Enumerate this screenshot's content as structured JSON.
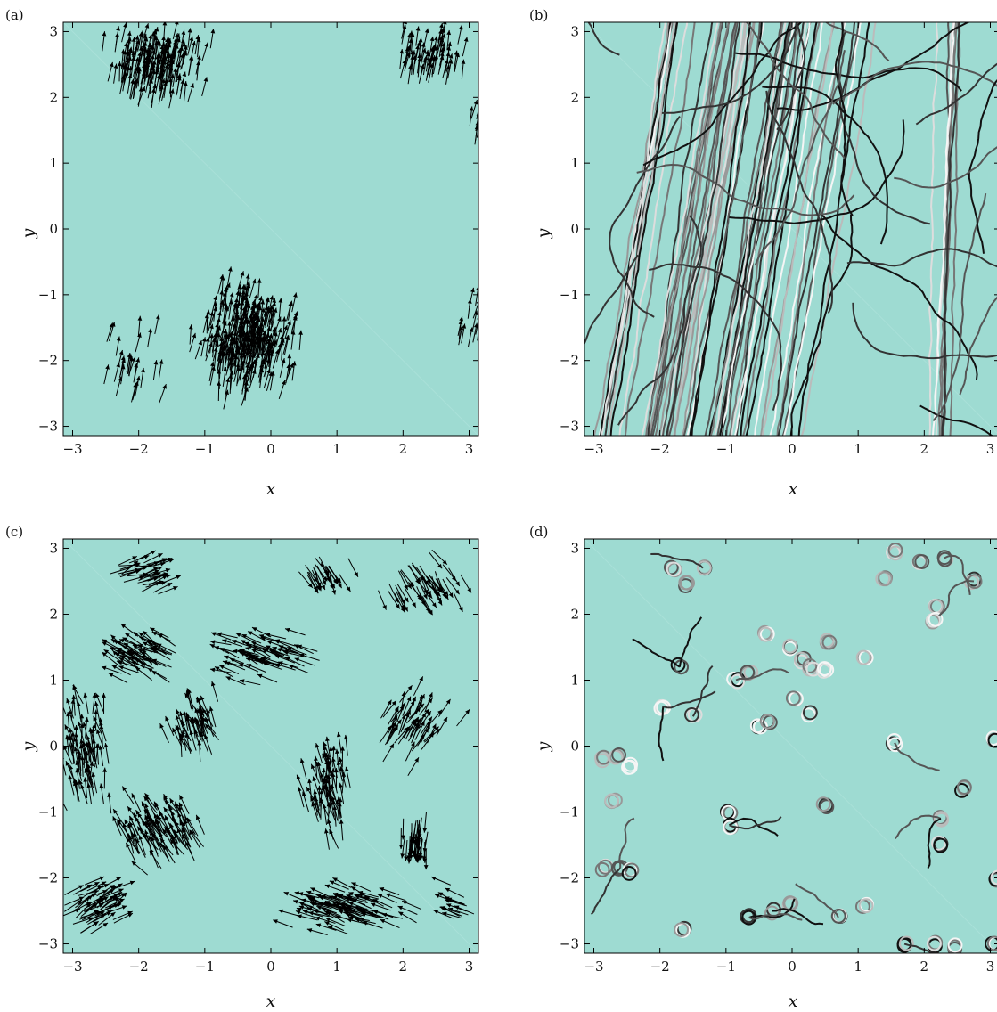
{
  "figure": {
    "background_color": "#ffffff",
    "plot_background": "#9edbd2",
    "arrow_color": "#000000"
  },
  "chart_data": [
    {
      "panel": "(a)",
      "type": "quiver",
      "xlabel": "x",
      "ylabel": "y",
      "xlim": [
        -3.14159,
        3.14159
      ],
      "ylim": [
        -3.14159,
        3.14159
      ],
      "xticks": [
        "−3",
        "−2",
        "−1",
        "0",
        "1",
        "2",
        "3"
      ],
      "yticks": [
        "3",
        "2",
        "1",
        "0",
        "−1",
        "−2",
        "−3"
      ],
      "xtick_values": [
        -3,
        -2,
        -1,
        0,
        1,
        2,
        3
      ],
      "ytick_values": [
        3,
        2,
        1,
        0,
        -1,
        -2,
        -3
      ],
      "arrow_length": 0.3,
      "clusters": [
        {
          "cx": -1.8,
          "cy": 2.4,
          "rx": 1.0,
          "ry": 0.75,
          "n": 190,
          "angle": 80,
          "spread": 12
        },
        {
          "cx": 2.4,
          "cy": 2.5,
          "rx": 0.75,
          "ry": 0.55,
          "n": 70,
          "angle": 80,
          "spread": 10
        },
        {
          "cx": 3.1,
          "cy": 1.6,
          "rx": 0.3,
          "ry": 0.4,
          "n": 12,
          "angle": 80,
          "spread": 10
        },
        {
          "cx": -0.4,
          "cy": -1.8,
          "rx": 0.95,
          "ry": 1.15,
          "n": 330,
          "angle": 80,
          "spread": 14
        },
        {
          "cx": -2.1,
          "cy": -2.2,
          "rx": 0.6,
          "ry": 0.9,
          "n": 28,
          "angle": 78,
          "spread": 10
        },
        {
          "cx": 3.0,
          "cy": -1.5,
          "rx": 0.3,
          "ry": 0.5,
          "n": 14,
          "angle": 78,
          "spread": 10
        }
      ]
    },
    {
      "panel": "(b)",
      "type": "trajectories",
      "xlabel": "x",
      "ylabel": "y",
      "xlim": [
        -3.14159,
        3.14159
      ],
      "ylim": [
        -3.14159,
        3.14159
      ],
      "xticks": [
        "−3",
        "−2",
        "−1",
        "0",
        "1",
        "2",
        "3"
      ],
      "yticks": [
        "3",
        "2",
        "1",
        "0",
        "−1",
        "−2",
        "−3"
      ],
      "xtick_values": [
        -3,
        -2,
        -1,
        0,
        1,
        2,
        3
      ],
      "ytick_values": [
        3,
        2,
        1,
        0,
        -1,
        -2,
        -3
      ],
      "bundles": [
        {
          "x_from": -3.1,
          "x_to": 0.2,
          "n": 60,
          "tilt": 0.17
        },
        {
          "x_from": 2.0,
          "x_to": 2.4,
          "n": 8,
          "tilt": 0.03
        }
      ],
      "curvy_count": 30,
      "gray_levels": [
        "#111111",
        "#333333",
        "#555555",
        "#777777",
        "#999999",
        "#bbbbbb",
        "#dddddd",
        "#f5f5f5"
      ]
    },
    {
      "panel": "(c)",
      "type": "quiver",
      "xlabel": "x",
      "ylabel": "y",
      "xlim": [
        -3.14159,
        3.14159
      ],
      "ylim": [
        -3.14159,
        3.14159
      ],
      "xticks": [
        "−3",
        "−2",
        "−1",
        "0",
        "1",
        "2",
        "3"
      ],
      "yticks": [
        "3",
        "2",
        "1",
        "0",
        "−1",
        "−2",
        "−3"
      ],
      "xtick_values": [
        -3,
        -2,
        -1,
        0,
        1,
        2,
        3
      ],
      "ytick_values": [
        3,
        2,
        1,
        0,
        -1,
        -2,
        -3
      ],
      "arrow_length": 0.32,
      "clusters": [
        {
          "cx": -2.0,
          "cy": 2.6,
          "rx": 0.6,
          "ry": 0.4,
          "n": 40,
          "angle": 20,
          "spread": 25
        },
        {
          "cx": -1.9,
          "cy": 1.3,
          "rx": 0.7,
          "ry": 0.45,
          "n": 70,
          "angle": 150,
          "spread": 25
        },
        {
          "cx": 0.1,
          "cy": 1.3,
          "rx": 1.0,
          "ry": 0.5,
          "n": 80,
          "angle": 160,
          "spread": 20
        },
        {
          "cx": 0.8,
          "cy": 2.7,
          "rx": 0.6,
          "ry": 0.3,
          "n": 25,
          "angle": -60,
          "spread": 20
        },
        {
          "cx": 2.3,
          "cy": 2.6,
          "rx": 0.8,
          "ry": 0.5,
          "n": 50,
          "angle": -60,
          "spread": 20
        },
        {
          "cx": -2.8,
          "cy": -0.2,
          "rx": 0.5,
          "ry": 1.1,
          "n": 90,
          "angle": 100,
          "spread": 25
        },
        {
          "cx": -1.1,
          "cy": 0.2,
          "rx": 0.6,
          "ry": 0.6,
          "n": 55,
          "angle": 110,
          "spread": 25
        },
        {
          "cx": -1.6,
          "cy": -1.4,
          "rx": 0.9,
          "ry": 0.7,
          "n": 110,
          "angle": 120,
          "spread": 25
        },
        {
          "cx": 0.9,
          "cy": -0.8,
          "rx": 0.5,
          "ry": 0.9,
          "n": 80,
          "angle": 100,
          "spread": 25
        },
        {
          "cx": 2.1,
          "cy": 0.2,
          "rx": 0.8,
          "ry": 0.7,
          "n": 60,
          "angle": 60,
          "spread": 25
        },
        {
          "cx": 2.2,
          "cy": -1.3,
          "rx": 0.3,
          "ry": 0.4,
          "n": 40,
          "angle": -95,
          "spread": 10
        },
        {
          "cx": 1.3,
          "cy": -2.5,
          "rx": 1.2,
          "ry": 0.5,
          "n": 110,
          "angle": 160,
          "spread": 15
        },
        {
          "cx": -2.7,
          "cy": -2.5,
          "rx": 0.6,
          "ry": 0.5,
          "n": 60,
          "angle": 30,
          "spread": 20
        },
        {
          "cx": 2.9,
          "cy": -2.4,
          "rx": 0.3,
          "ry": 0.4,
          "n": 15,
          "angle": 160,
          "spread": 15
        }
      ]
    },
    {
      "panel": "(d)",
      "type": "trajectories",
      "xlabel": "x",
      "ylabel": "y",
      "xlim": [
        -3.14159,
        3.14159
      ],
      "ylim": [
        -3.14159,
        3.14159
      ],
      "xticks": [
        "−3",
        "−2",
        "−1",
        "0",
        "1",
        "2",
        "3"
      ],
      "yticks": [
        "3",
        "2",
        "1",
        "0",
        "−1",
        "−2",
        "−3"
      ],
      "xtick_values": [
        -3,
        -2,
        -1,
        0,
        1,
        2,
        3
      ],
      "ytick_values": [
        3,
        2,
        1,
        0,
        -1,
        -2,
        -3
      ],
      "loop_centers": [
        [
          -1.8,
          2.7
        ],
        [
          -1.35,
          2.7
        ],
        [
          -1.6,
          2.45
        ],
        [
          -1.7,
          1.2
        ],
        [
          -0.85,
          1.0
        ],
        [
          -0.65,
          1.1
        ],
        [
          -0.4,
          1.7
        ],
        [
          -0.05,
          1.5
        ],
        [
          0.15,
          1.3
        ],
        [
          0.3,
          1.2
        ],
        [
          0.55,
          1.6
        ],
        [
          0.5,
          1.15
        ],
        [
          -0.5,
          0.3
        ],
        [
          -0.35,
          0.35
        ],
        [
          0.05,
          0.7
        ],
        [
          0.25,
          0.5
        ],
        [
          -1.5,
          0.45
        ],
        [
          -1.95,
          0.6
        ],
        [
          -2.85,
          -0.2
        ],
        [
          -2.65,
          -0.15
        ],
        [
          -2.45,
          -0.3
        ],
        [
          -2.7,
          -0.85
        ],
        [
          -0.95,
          -1.0
        ],
        [
          -0.95,
          -1.2
        ],
        [
          0.5,
          -0.9
        ],
        [
          -1.65,
          -2.8
        ],
        [
          -0.65,
          -2.6
        ],
        [
          -0.3,
          -2.5
        ],
        [
          -0.05,
          -2.4
        ],
        [
          0.7,
          -2.6
        ],
        [
          1.1,
          -2.4
        ],
        [
          -2.85,
          -1.85
        ],
        [
          -2.6,
          -1.85
        ],
        [
          -2.45,
          -1.9
        ],
        [
          1.4,
          2.55
        ],
        [
          1.55,
          2.95
        ],
        [
          1.95,
          2.8
        ],
        [
          2.3,
          2.85
        ],
        [
          2.75,
          2.5
        ],
        [
          2.2,
          2.1
        ],
        [
          2.15,
          1.9
        ],
        [
          1.55,
          0.05
        ],
        [
          2.25,
          -1.1
        ],
        [
          2.25,
          -1.5
        ],
        [
          3.05,
          0.1
        ],
        [
          3.1,
          -2.0
        ],
        [
          1.1,
          1.35
        ],
        [
          2.6,
          -0.65
        ],
        [
          1.7,
          -3.0
        ],
        [
          2.15,
          -3.0
        ],
        [
          2.45,
          -3.05
        ],
        [
          3.05,
          -3.0
        ]
      ],
      "wander_count": 22,
      "gray_levels": [
        "#111111",
        "#333333",
        "#555555",
        "#777777",
        "#999999",
        "#bbbbbb",
        "#dddddd",
        "#f5f5f5"
      ]
    }
  ]
}
